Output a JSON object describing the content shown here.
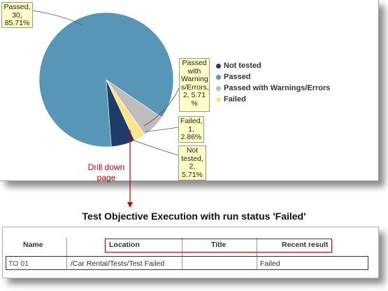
{
  "colors": {
    "not_tested": "#1f3b6a",
    "passed": "#5896b8",
    "passed_with_warnings": "#bdbdbd",
    "failed": "#fde58a",
    "annotation_red": "#cc0000"
  },
  "chart_data": {
    "type": "pie",
    "categories": [
      "Not tested",
      "Passed",
      "Passed with Warnings/Errors",
      "Failed"
    ],
    "values": [
      2,
      30,
      2,
      1
    ],
    "percentages": [
      5.71,
      85.71,
      5.71,
      2.86
    ],
    "legend_position": "right"
  },
  "callouts": {
    "passed": [
      "Passed,",
      "30,",
      "85.71%"
    ],
    "warnings": [
      "Passed",
      "with",
      "Warning",
      "s/Errors,",
      "2, 5.71",
      "%"
    ],
    "failed": [
      "Failed,",
      "1,",
      "2.86%"
    ],
    "not_tested": [
      "Not",
      "tested,",
      "2,",
      "5.71%"
    ]
  },
  "legend": {
    "items": [
      "Not tested",
      "Passed",
      "Passed with Warnings/Errors",
      "Failed"
    ]
  },
  "drill_label": [
    "Drill down",
    "page"
  ],
  "table": {
    "title": "Test Objective Execution with run status 'Failed'",
    "headers": [
      "Name",
      "Location",
      "Title",
      "Recent result"
    ],
    "rows": [
      {
        "name": "TO 01",
        "location": "/Car Rental/Tests/Test Failed",
        "title": "",
        "recent_result": "Failed"
      }
    ]
  }
}
